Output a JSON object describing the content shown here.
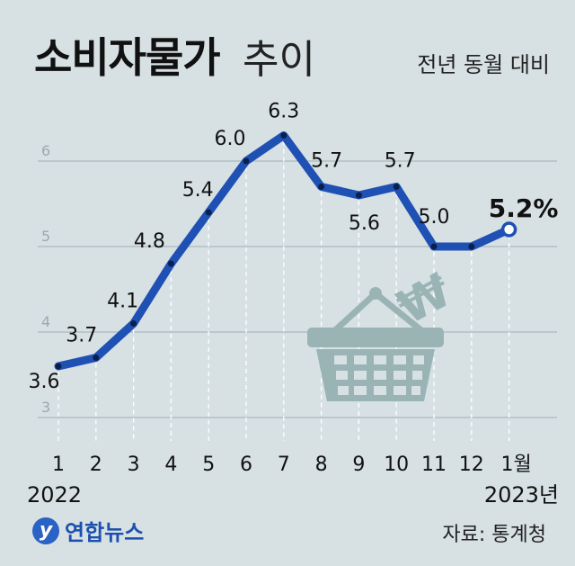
{
  "header": {
    "title": "소비자물가",
    "title_suffix": "추이",
    "subtitle": "전년 동월 대비"
  },
  "footer": {
    "logo_letter": "y",
    "logo_text": "연합뉴스",
    "source": "자료: 통계청"
  },
  "chart_data": {
    "type": "line",
    "title": "소비자물가 추이",
    "subtitle": "전년 동월 대비",
    "categories": [
      "1",
      "2",
      "3",
      "4",
      "5",
      "6",
      "7",
      "8",
      "9",
      "10",
      "11",
      "12",
      "1월"
    ],
    "year_labels": [
      "2022",
      "2023년"
    ],
    "values": [
      3.6,
      3.7,
      4.1,
      4.8,
      5.4,
      6.0,
      6.3,
      5.7,
      5.6,
      5.7,
      5.0,
      5.0,
      5.2
    ],
    "value_labels": [
      "3.6",
      "3.7",
      "4.1",
      "4.8",
      "5.4",
      "6.0",
      "6.3",
      "5.7",
      "5.6",
      "5.7",
      "5.0",
      "",
      "5.2%"
    ],
    "y_ticks": [
      3,
      4,
      5,
      6
    ],
    "ylim": [
      3,
      6.3
    ],
    "grid": true,
    "line_color": "#1f50b4",
    "highlight_label": "5.2%"
  },
  "colors": {
    "background": "#d7e1e4",
    "grid": "#a8b9bf",
    "basket": "#9ab4b6"
  },
  "decoration": {
    "icon": "shopping-basket-icon",
    "currency_symbol": "₩"
  }
}
